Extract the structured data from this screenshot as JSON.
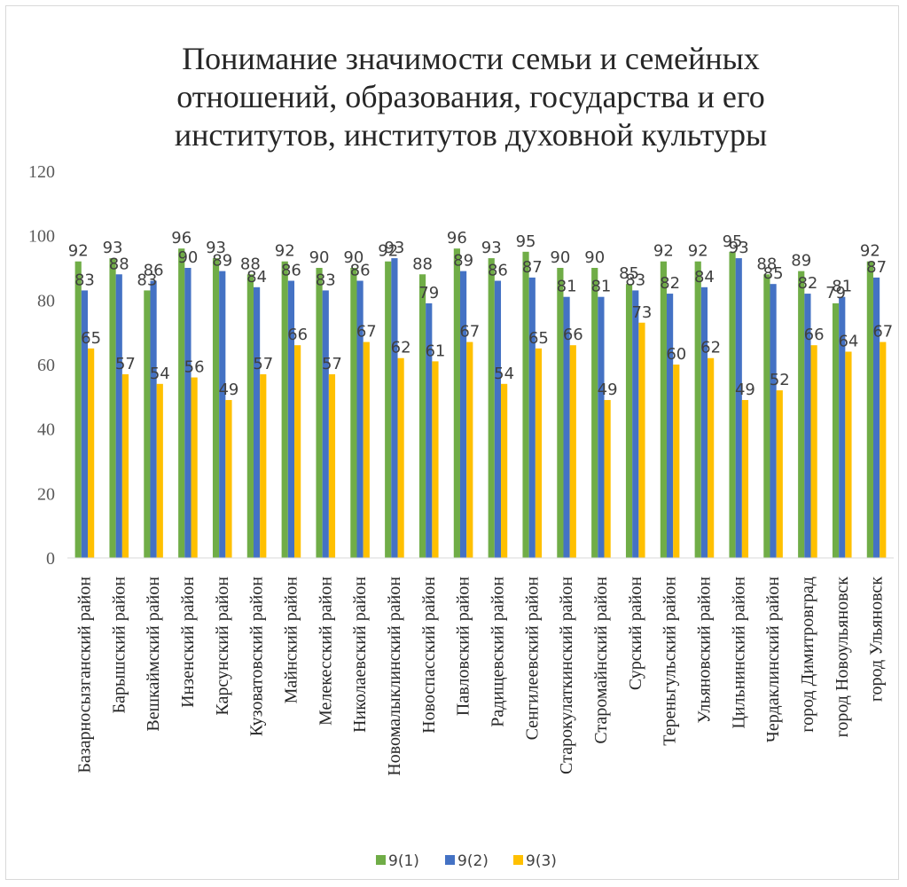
{
  "chart_data": {
    "type": "bar",
    "title_lines": [
      "Понимание значимости семьи и семейных",
      "отношений, образования, государства и его",
      "институтов, институтов духовной культуры"
    ],
    "categories": [
      "Базарносызганский район",
      "Барышский район",
      "Вешкаймский район",
      "Инзенский район",
      "Карсунский район",
      "Кузоватовский район",
      "Майнский район",
      "Мелекесский район",
      "Николаевский район",
      "Новомалыклинский район",
      "Новоспасский район",
      "Павловский район",
      "Радищевский район",
      "Сенгилеевский район",
      "Старокулаткинский район",
      "Старомайнский район",
      "Сурский район",
      "Тереньгульский район",
      "Ульяновский район",
      "Цильнинский район",
      "Чердаклинский район",
      "город Димитровград",
      "город Новоульяновск",
      "город Ульяновск"
    ],
    "series": [
      {
        "name": "9(1)",
        "color": "#70ad47",
        "values": [
          92,
          93,
          83,
          96,
          93,
          88,
          92,
          90,
          90,
          92,
          88,
          96,
          93,
          95,
          90,
          90,
          85,
          92,
          92,
          95,
          88,
          89,
          79,
          92
        ]
      },
      {
        "name": "9(2)",
        "color": "#4472c4",
        "values": [
          83,
          88,
          86,
          90,
          89,
          84,
          86,
          83,
          86,
          93,
          79,
          89,
          86,
          87,
          81,
          81,
          83,
          82,
          84,
          93,
          85,
          82,
          81,
          87
        ]
      },
      {
        "name": "9(3)",
        "color": "#ffc000",
        "values": [
          65,
          57,
          54,
          56,
          49,
          57,
          66,
          57,
          67,
          62,
          61,
          67,
          54,
          65,
          66,
          49,
          73,
          60,
          62,
          49,
          52,
          66,
          64,
          67
        ]
      }
    ],
    "ylim": [
      0,
      120
    ],
    "yticks": [
      0,
      20,
      40,
      60,
      80,
      100,
      120
    ],
    "grid": false,
    "legend_position": "bottom"
  }
}
